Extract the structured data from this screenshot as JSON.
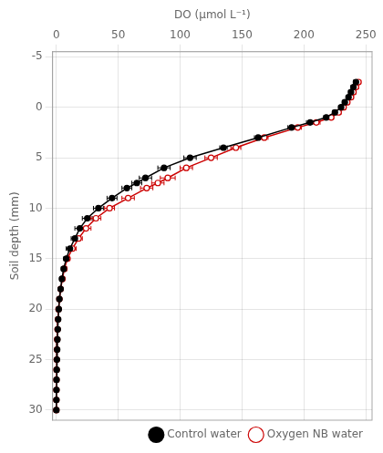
{
  "chart_data": {
    "type": "line",
    "xlabel": "DO (μmol L⁻¹)",
    "ylabel": "Soil depth (mm)",
    "xlim": [
      -3,
      255
    ],
    "ylim": [
      31,
      -5.5
    ],
    "xticks": [
      0,
      50,
      100,
      150,
      200,
      250
    ],
    "yticks": [
      -5,
      0,
      5,
      10,
      15,
      20,
      25,
      30
    ],
    "grid": true,
    "legend": "lower right",
    "series": [
      {
        "name": "Control water",
        "color": "#000000",
        "marker": "circle",
        "line_style": "solid",
        "x": [
          242,
          240,
          238,
          236,
          233,
          230,
          225,
          218,
          205,
          190,
          163,
          135,
          108,
          87,
          72,
          65,
          57,
          45,
          34,
          25,
          19,
          15,
          11,
          8,
          6,
          4.5,
          3.5,
          2.5,
          2.0,
          1.5,
          1.2,
          0.9,
          0.7,
          0.5,
          0.35,
          0.2,
          0.15,
          0.1,
          0.05
        ],
        "values": [
          -2.5,
          -2.0,
          -1.5,
          -1.0,
          -0.5,
          0.0,
          0.5,
          1.0,
          1.5,
          2.0,
          3.0,
          4.0,
          5.0,
          6.0,
          7.0,
          7.5,
          8.0,
          9.0,
          10.0,
          11.0,
          12.0,
          13.0,
          14.0,
          15.0,
          16.0,
          17.0,
          18.0,
          19.0,
          20.0,
          21.0,
          22.0,
          23.0,
          24.0,
          25.0,
          26.0,
          27.0,
          28.0,
          29.0,
          30.0
        ],
        "xerr": [
          2,
          2,
          2,
          2,
          2,
          2,
          2,
          2,
          3,
          3,
          3,
          3,
          5,
          5,
          5,
          4,
          4,
          4,
          4,
          4,
          4,
          3,
          3,
          2,
          2,
          1.5,
          1,
          1,
          0.5,
          0.5,
          0.5,
          0.5,
          0.5,
          0.5,
          0.5,
          0.5,
          0.5,
          0.5,
          0.5
        ]
      },
      {
        "name": "Oxygen NB water",
        "color": "#cc0000",
        "marker": "open_circle",
        "line_style": "solid",
        "x": [
          244,
          242,
          240,
          238,
          235,
          232,
          228,
          222,
          210,
          195,
          168,
          145,
          125,
          105,
          90,
          82,
          73,
          58,
          43,
          32,
          24,
          18,
          13,
          9,
          6.5,
          5,
          3.5,
          2.5,
          1.8,
          1.3,
          1.0,
          0.7,
          0.5,
          0.35,
          0.2,
          0.15,
          0.1,
          0.05,
          0.02
        ],
        "values": [
          -2.5,
          -2.0,
          -1.5,
          -1.0,
          -0.5,
          0.0,
          0.5,
          1.0,
          1.5,
          2.0,
          3.0,
          4.0,
          5.0,
          6.0,
          7.0,
          7.5,
          8.0,
          9.0,
          10.0,
          11.0,
          12.0,
          13.0,
          14.0,
          15.0,
          16.0,
          17.0,
          18.0,
          19.0,
          20.0,
          21.0,
          22.0,
          23.0,
          24.0,
          25.0,
          26.0,
          27.0,
          28.0,
          29.0,
          30.0
        ],
        "xerr": [
          2,
          2,
          2,
          2,
          2,
          2,
          2,
          2,
          3,
          3,
          3,
          4,
          5,
          5,
          6,
          5,
          5,
          5,
          4,
          4,
          4,
          3,
          3,
          2,
          2,
          1.5,
          1,
          1,
          0.5,
          0.5,
          0.5,
          0.5,
          0.5,
          0.5,
          0.5,
          0.5,
          0.5,
          0.5,
          0.5
        ]
      }
    ]
  }
}
